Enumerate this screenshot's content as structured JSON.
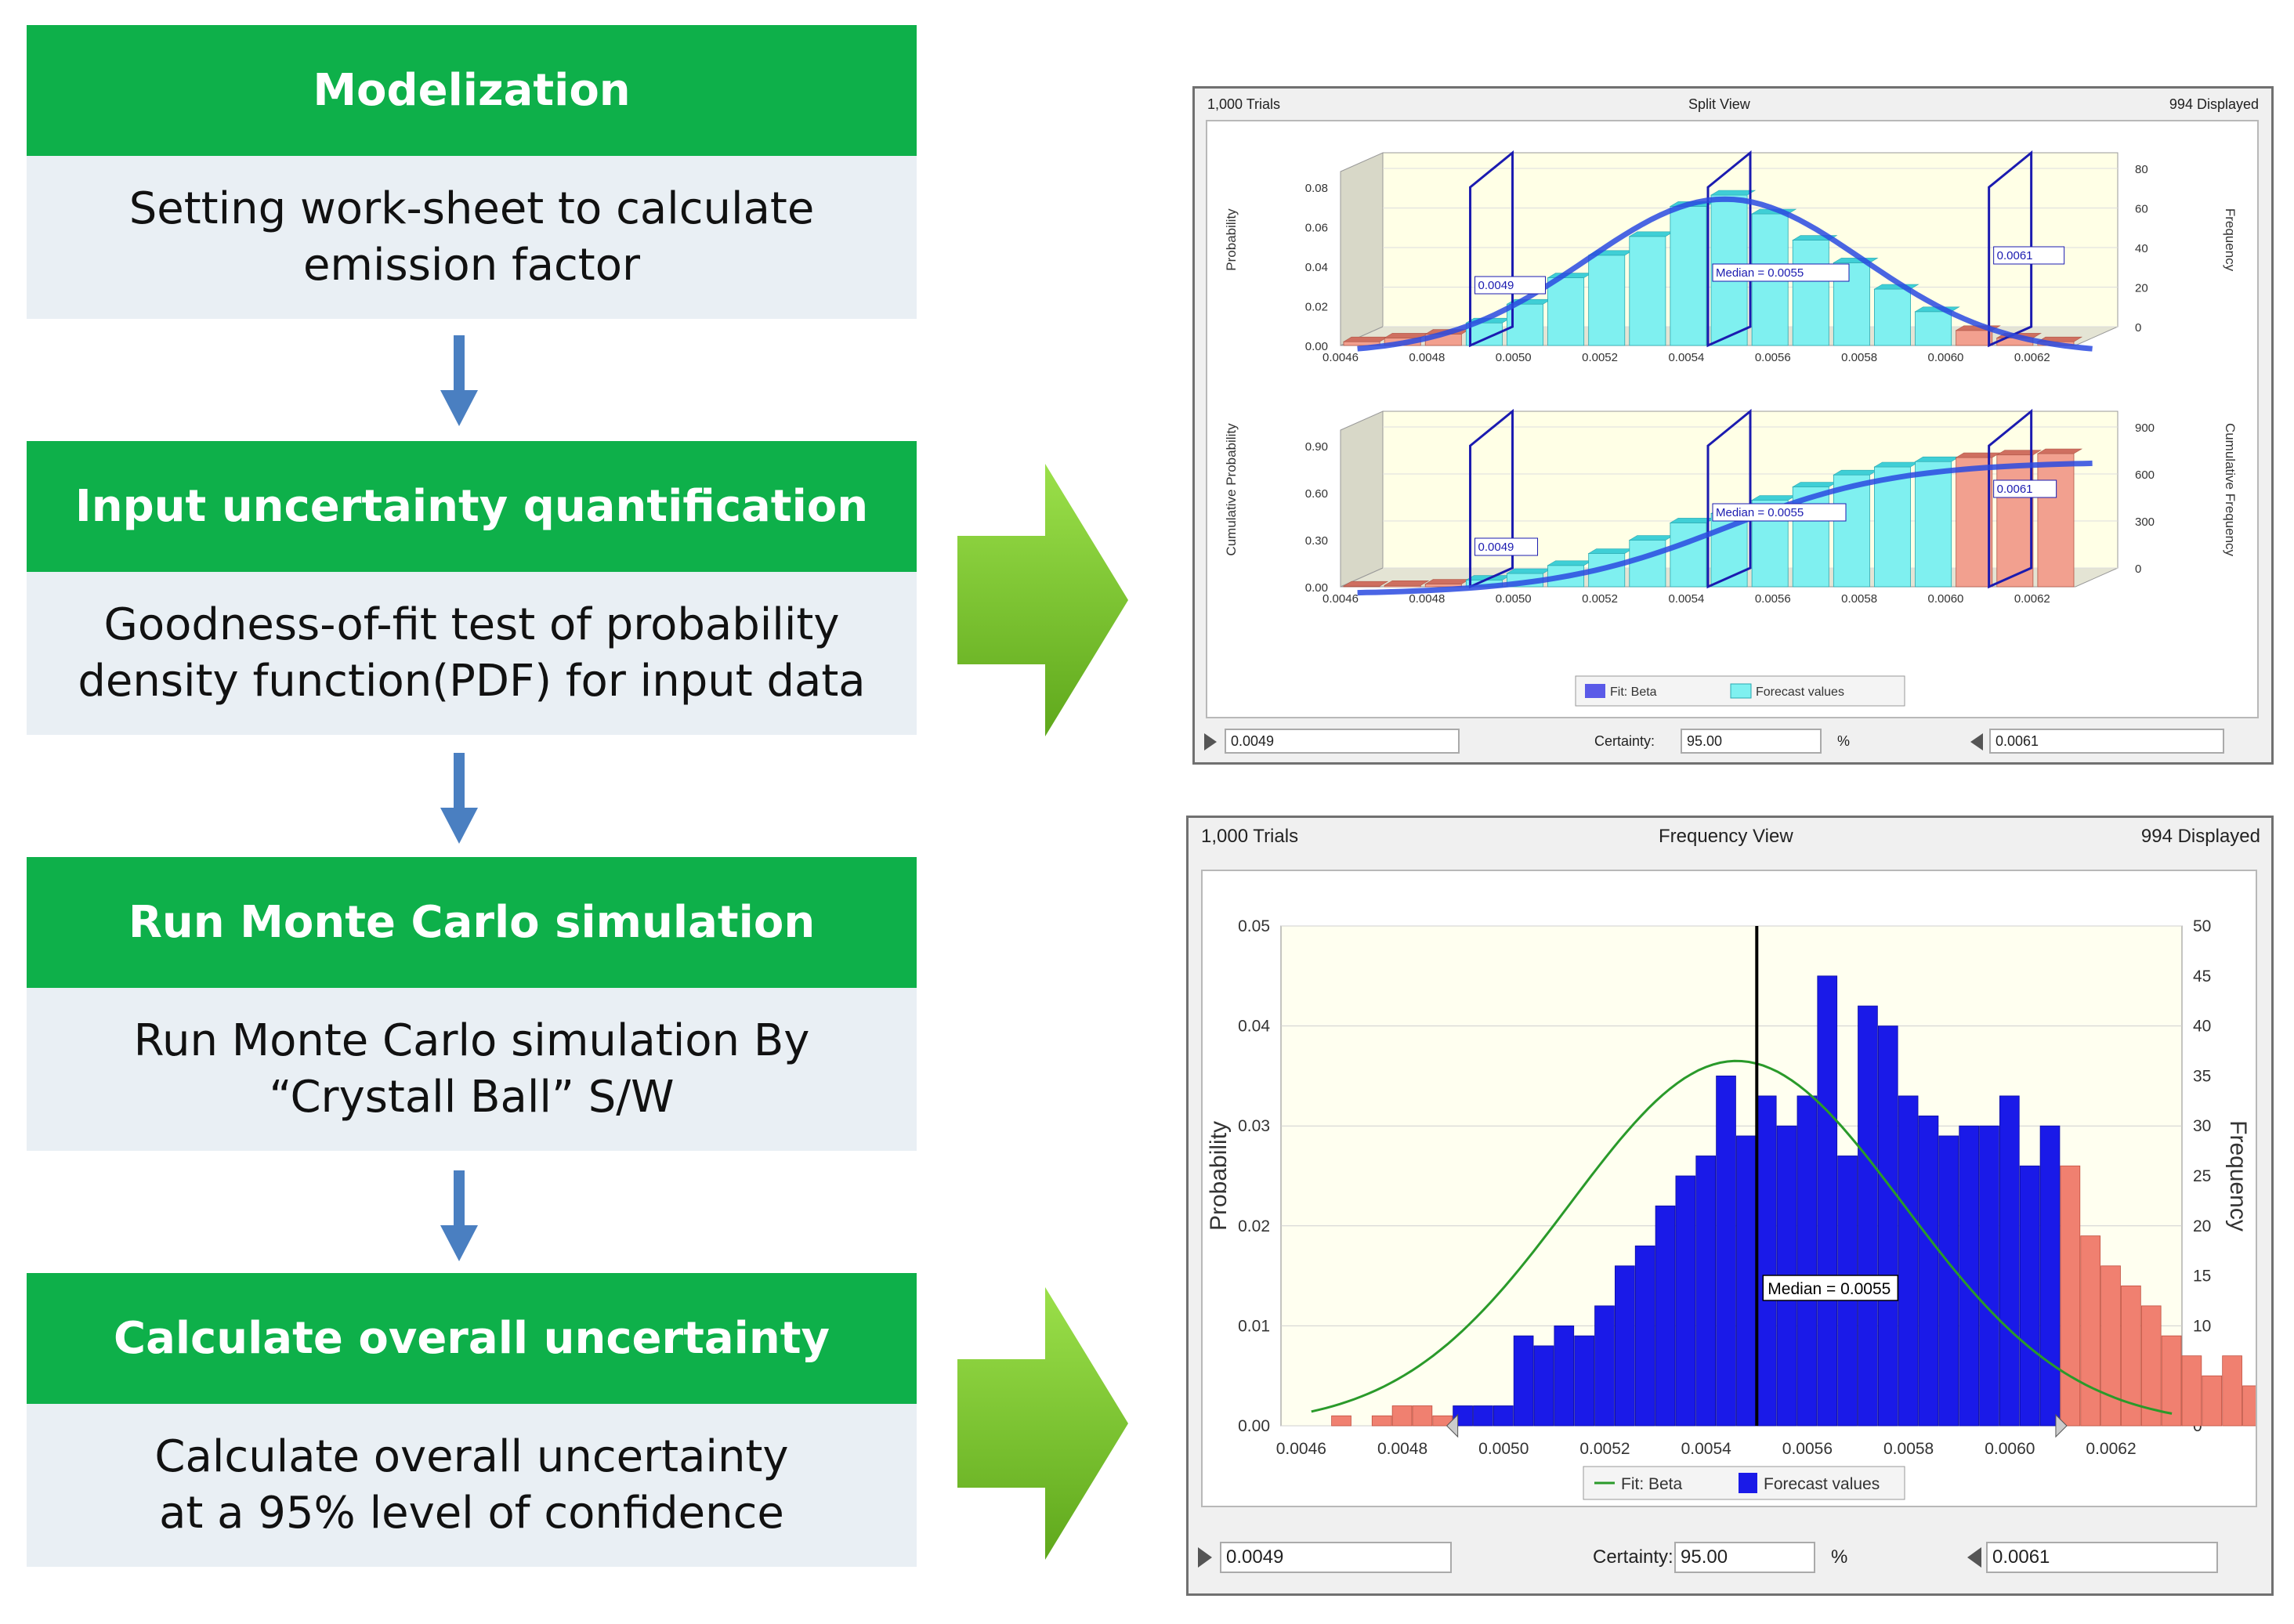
{
  "steps": [
    {
      "title": "Modelization",
      "body": "Setting work-sheet to calculate\nemission factor"
    },
    {
      "title": "Input uncertainty quantification",
      "body": "Goodness-of-fit test of probability\ndensity function(PDF) for input data"
    },
    {
      "title": "Run Monte Carlo simulation",
      "body": "Run Monte Carlo simulation By\n“Crystall Ball” S/W"
    },
    {
      "title": "Calculate overall uncertainty",
      "body": "Calculate overall uncertainty\nat a 95% level of confidence"
    }
  ],
  "colors": {
    "green": "#0eb04a",
    "panel": "#e9eff4",
    "arrow_blue": "#4a7fc1",
    "arrow_green": "#7dc62b"
  },
  "split_view": {
    "trials": "1,000 Trials",
    "title": "Split View",
    "displayed": "994 Displayed",
    "top": {
      "ylabel_left": "Probability",
      "ylabel_right": "Frequency",
      "left_ticks": [
        "0.08",
        "0.06",
        "0.04",
        "0.02",
        "0.00"
      ],
      "right_ticks": [
        "80",
        "60",
        "40",
        "20",
        "0"
      ],
      "x_ticks": [
        "0.0046",
        "0.0048",
        "0.0050",
        "0.0052",
        "0.0054",
        "0.0056",
        "0.0058",
        "0.0060",
        "0.0062"
      ],
      "labels": {
        "lower": "0.0049",
        "median": "Median = 0.0055",
        "upper": "0.0061"
      }
    },
    "bottom": {
      "ylabel_left": "Cumulative Probability",
      "ylabel_right": "Cumulative Frequency",
      "left_ticks": [
        "0.90",
        "0.60",
        "0.30",
        "0.00"
      ],
      "right_ticks": [
        "900",
        "600",
        "300",
        "0"
      ],
      "x_ticks": [
        "0.0046",
        "0.0048",
        "0.0050",
        "0.0052",
        "0.0054",
        "0.0056",
        "0.0058",
        "0.0060",
        "0.0062"
      ],
      "labels": {
        "lower": "0.0049",
        "median": "Median = 0.0055",
        "upper": "0.0061"
      }
    },
    "legend": {
      "fit": "Fit: Beta",
      "forecast": "Forecast values"
    },
    "lower_value": "0.0049",
    "certainty_label": "Certainty:",
    "certainty_value": "95.00",
    "percent": "%",
    "upper_value": "0.0061"
  },
  "frequency_view": {
    "trials": "1,000 Trials",
    "title": "Frequency View",
    "displayed": "994 Displayed",
    "ylabel_left": "Probability",
    "ylabel_right": "Frequency",
    "median_label": "Median = 0.0055",
    "legend": {
      "fit": "Fit: Beta",
      "forecast": "Forecast values"
    },
    "lower_value": "0.0049",
    "certainty_label": "Certainty:",
    "certainty_value": "95.00",
    "percent": "%",
    "upper_value": "0.0061"
  },
  "chart_data": [
    {
      "type": "bar",
      "name": "split-view-probability",
      "title": "Split View",
      "xlabel": "",
      "ylabel": "Probability",
      "ylabel_right": "Frequency",
      "x_ticks": [
        0.0046,
        0.0048,
        0.005,
        0.0052,
        0.0054,
        0.0056,
        0.0058,
        0.006,
        0.0062
      ],
      "ylim": [
        0,
        0.08
      ],
      "y2lim": [
        0,
        80
      ],
      "bins": [
        0.0046,
        0.0047,
        0.0048,
        0.0049,
        0.005,
        0.0051,
        0.0052,
        0.0053,
        0.0054,
        0.0055,
        0.0056,
        0.0057,
        0.0058,
        0.0059,
        0.006,
        0.0061,
        0.0062,
        0.0063
      ],
      "frequency": [
        2,
        4,
        6,
        12,
        22,
        36,
        48,
        58,
        74,
        80,
        70,
        56,
        44,
        30,
        18,
        8,
        4,
        2
      ],
      "series": [
        {
          "name": "Forecast values",
          "values": [
            2,
            4,
            6,
            12,
            22,
            36,
            48,
            58,
            74,
            80,
            70,
            56,
            44,
            30,
            18,
            8,
            4,
            2
          ]
        }
      ],
      "markers": {
        "lower": 0.0049,
        "median": 0.0055,
        "upper": 0.0061
      }
    },
    {
      "type": "bar",
      "name": "split-view-cumulative",
      "ylabel": "Cumulative Probability",
      "ylabel_right": "Cumulative Frequency",
      "x_ticks": [
        0.0046,
        0.0048,
        0.005,
        0.0052,
        0.0054,
        0.0056,
        0.0058,
        0.006,
        0.0062
      ],
      "ylim": [
        0,
        1.0
      ],
      "y2lim": [
        0,
        1000
      ],
      "bins": [
        0.0046,
        0.0047,
        0.0048,
        0.0049,
        0.005,
        0.0051,
        0.0052,
        0.0053,
        0.0054,
        0.0055,
        0.0056,
        0.0057,
        0.0058,
        0.0059,
        0.006,
        0.0061,
        0.0062,
        0.0063
      ],
      "cumulative_probability": [
        0.005,
        0.01,
        0.02,
        0.05,
        0.1,
        0.16,
        0.25,
        0.35,
        0.48,
        0.55,
        0.65,
        0.75,
        0.84,
        0.9,
        0.94,
        0.97,
        0.99,
        1.0
      ],
      "markers": {
        "lower": 0.0049,
        "median": 0.0055,
        "upper": 0.0061
      }
    },
    {
      "type": "bar",
      "name": "frequency-view",
      "title": "Frequency View",
      "xlabel": "",
      "ylabel": "Probability",
      "ylabel_right": "Frequency",
      "x_ticks": [
        0.0046,
        0.0048,
        0.005,
        0.0052,
        0.0054,
        0.0056,
        0.0058,
        0.006,
        0.0062
      ],
      "y_ticks": [
        0.0,
        0.01,
        0.02,
        0.03,
        0.04,
        0.05
      ],
      "y2_ticks": [
        0,
        5,
        10,
        15,
        20,
        25,
        30,
        35,
        40,
        45,
        50
      ],
      "ylim": [
        0,
        0.05
      ],
      "y2lim": [
        0,
        50
      ],
      "xlim": [
        0.00456,
        0.00634
      ],
      "bin_width": 4e-05,
      "bin_start": 0.00462,
      "frequency": [
        0,
        1,
        0,
        1,
        2,
        2,
        1,
        2,
        2,
        2,
        9,
        8,
        10,
        9,
        12,
        16,
        18,
        22,
        25,
        27,
        35,
        29,
        33,
        30,
        33,
        45,
        27,
        42,
        40,
        33,
        31,
        29,
        30,
        30,
        33,
        26,
        30,
        26,
        19,
        16,
        14,
        12,
        9,
        7,
        5,
        7,
        4,
        1,
        1,
        0
      ],
      "series": [
        {
          "name": "Forecast values",
          "values": [
            0,
            1,
            0,
            1,
            2,
            2,
            1,
            2,
            2,
            2,
            9,
            8,
            10,
            9,
            12,
            16,
            18,
            22,
            25,
            27,
            35,
            29,
            33,
            30,
            33,
            45,
            27,
            42,
            40,
            33,
            31,
            29,
            30,
            30,
            33,
            26,
            30,
            26,
            19,
            16,
            14,
            12,
            9,
            7,
            5,
            7,
            4,
            1,
            1,
            0
          ]
        }
      ],
      "fit": {
        "name": "Fit: Beta",
        "peak_frequency": 36.5,
        "peak_x": 0.00546
      },
      "markers": {
        "lower": 0.0049,
        "median": 0.0055,
        "upper": 0.0061
      }
    }
  ]
}
